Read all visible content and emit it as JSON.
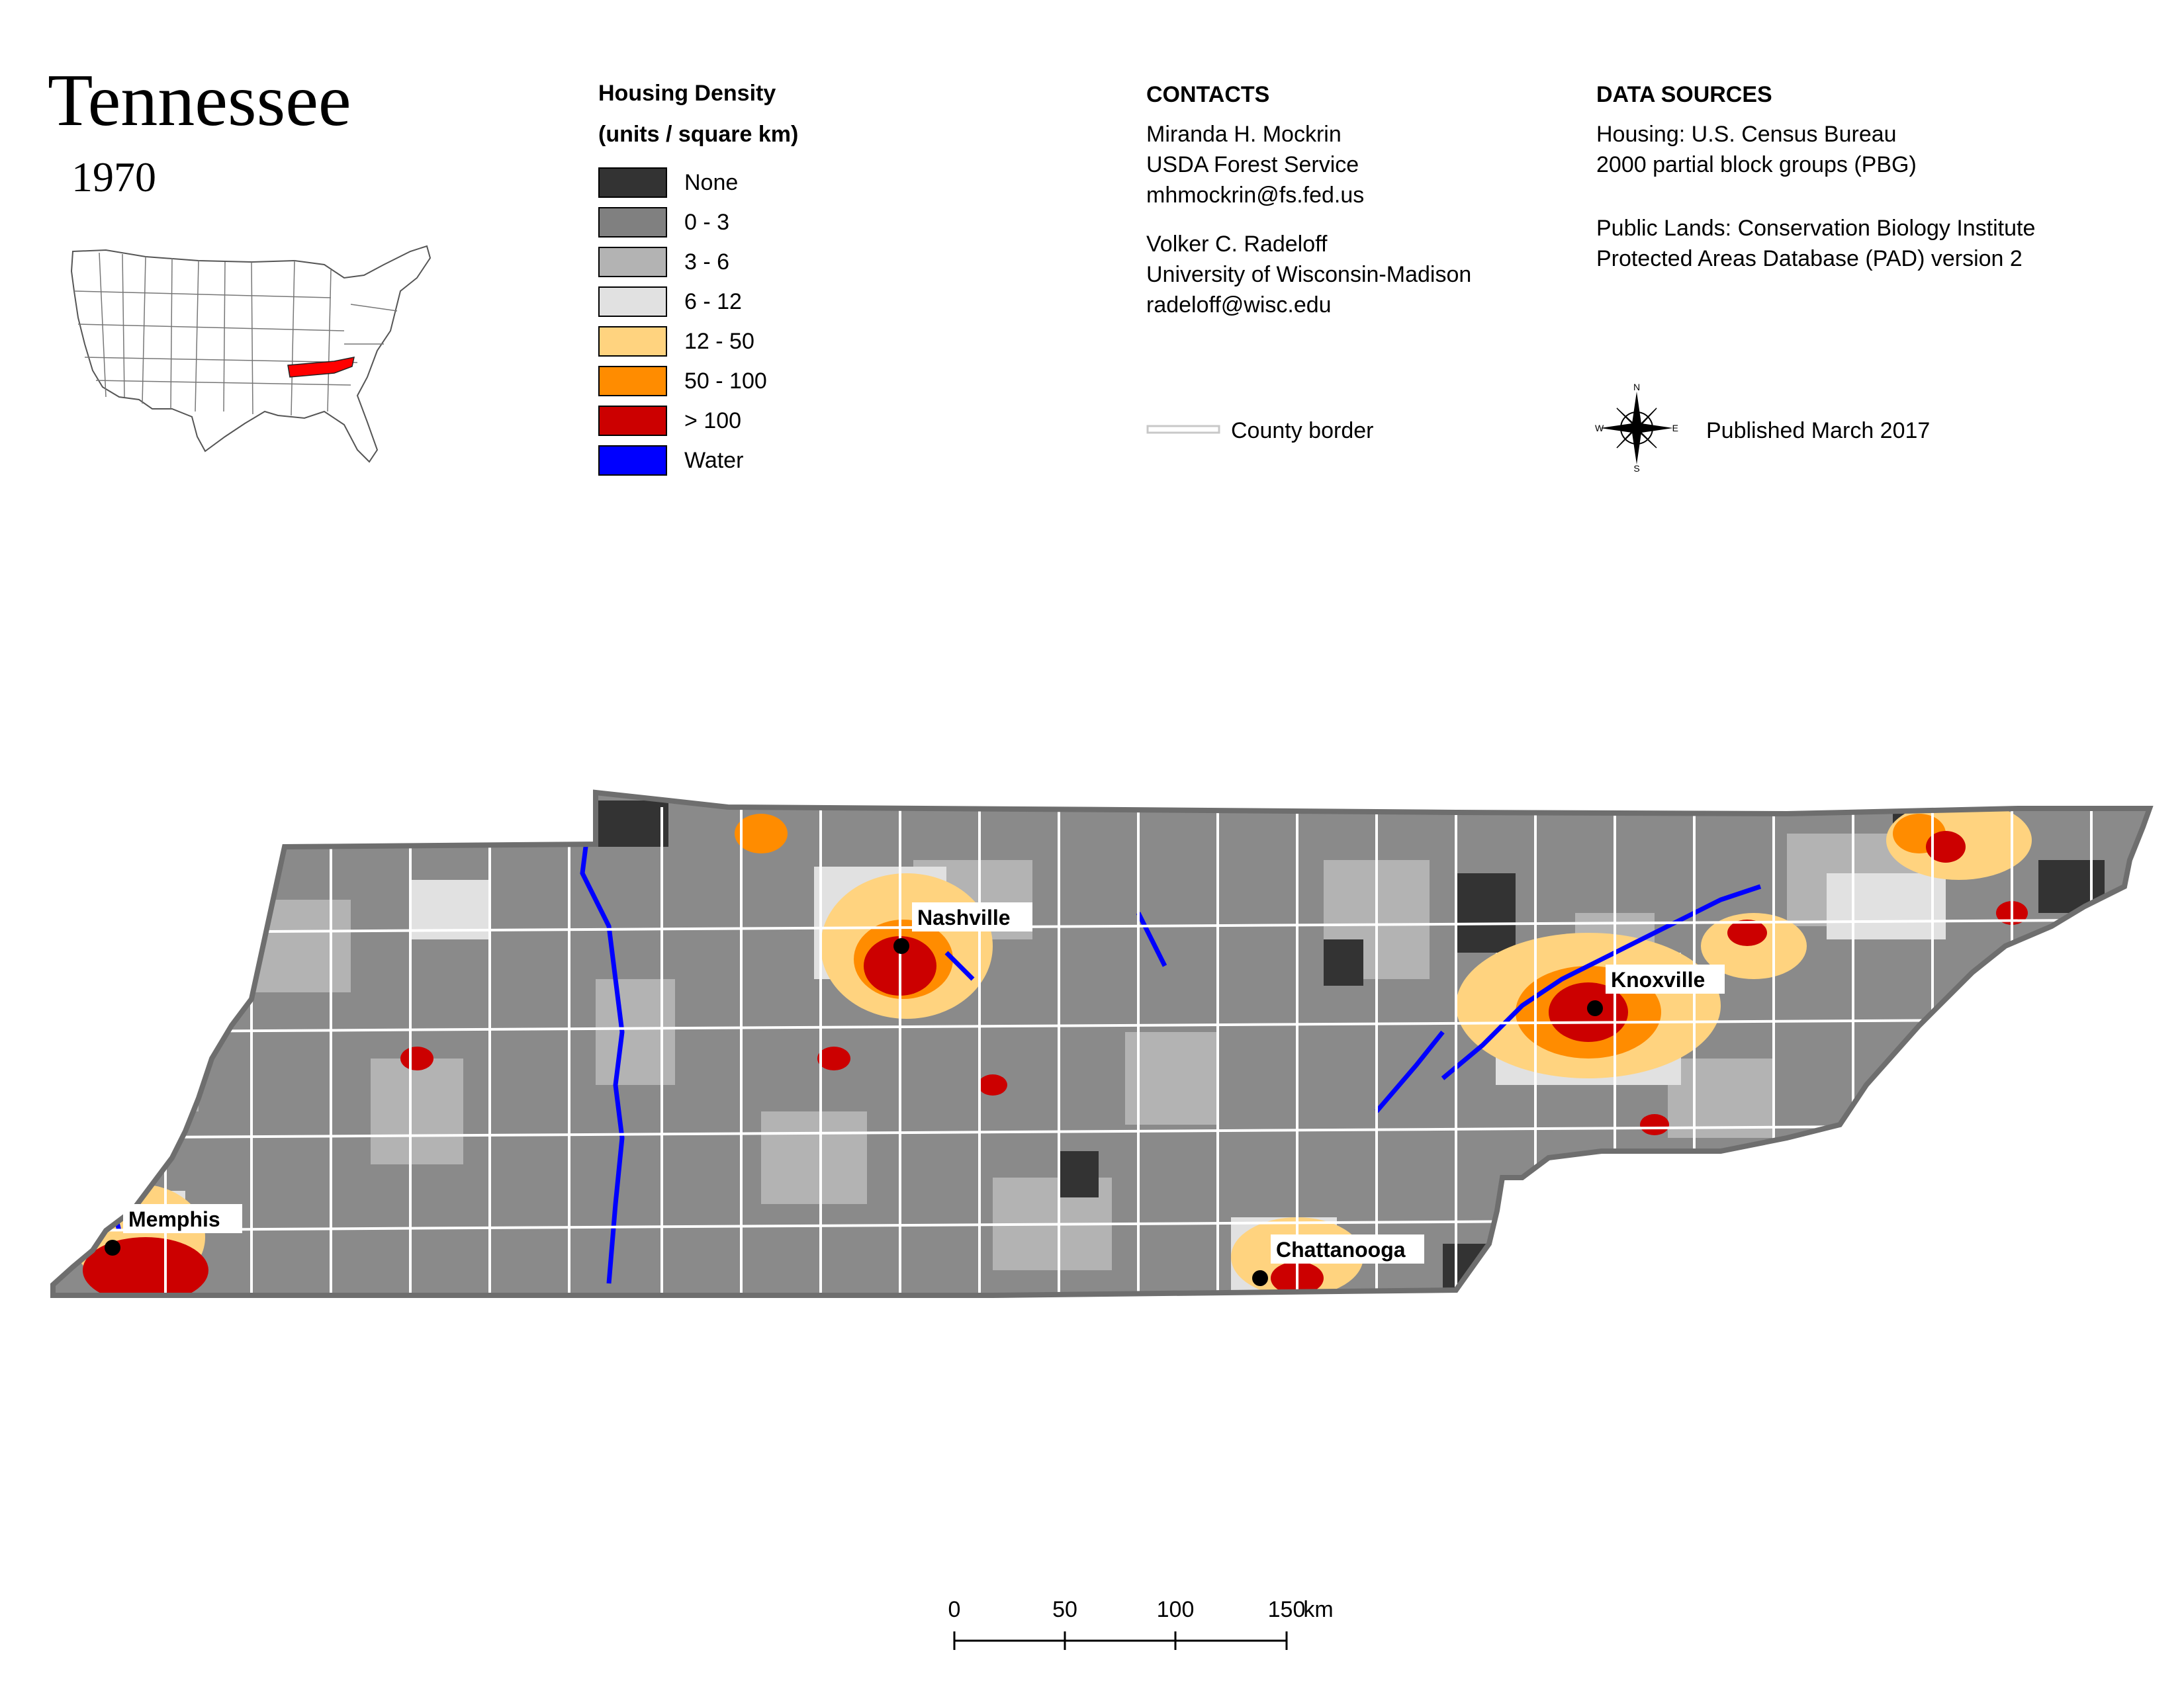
{
  "title": "Tennessee",
  "year": "1970",
  "legend": {
    "title_line1": "Housing Density",
    "title_line2": "(units / square km)",
    "items": [
      {
        "label": "None",
        "color": "#333333"
      },
      {
        "label": "0 - 3",
        "color": "#808080"
      },
      {
        "label": "3 - 6",
        "color": "#b3b3b3"
      },
      {
        "label": "6 - 12",
        "color": "#e1e1e1"
      },
      {
        "label": "12 - 50",
        "color": "#ffd37f"
      },
      {
        "label": "50 - 100",
        "color": "#ff8c00"
      },
      {
        "label": "> 100",
        "color": "#cc0000"
      },
      {
        "label": "Water",
        "color": "#0000ff"
      }
    ]
  },
  "contacts": {
    "header": "CONTACTS",
    "person1": [
      "Miranda H. Mockrin",
      "USDA Forest Service",
      "mhmockrin@fs.fed.us"
    ],
    "person2": [
      "Volker C. Radeloff",
      "University of Wisconsin-Madison",
      "radeloff@wisc.edu"
    ]
  },
  "data_sources": {
    "header": "DATA SOURCES",
    "housing": [
      "Housing: U.S. Census Bureau",
      "2000 partial block groups (PBG)"
    ],
    "public_lands": [
      "Public Lands: Conservation Biology Institute",
      "Protected Areas Database (PAD) version 2"
    ]
  },
  "county_border_label": "County border",
  "published": "Published March 2017",
  "compass": {
    "n": "N",
    "s": "S",
    "e": "E",
    "w": "W"
  },
  "cities": {
    "nashville": "Nashville",
    "knoxville": "Knoxville",
    "memphis": "Memphis",
    "chattanooga": "Chattanooga"
  },
  "scale_bar": {
    "ticks": [
      "0",
      "50",
      "100",
      "150"
    ],
    "unit": "km"
  },
  "colors": {
    "state_highlight": "#ff0000",
    "state_outline": "#6e6e6e"
  }
}
